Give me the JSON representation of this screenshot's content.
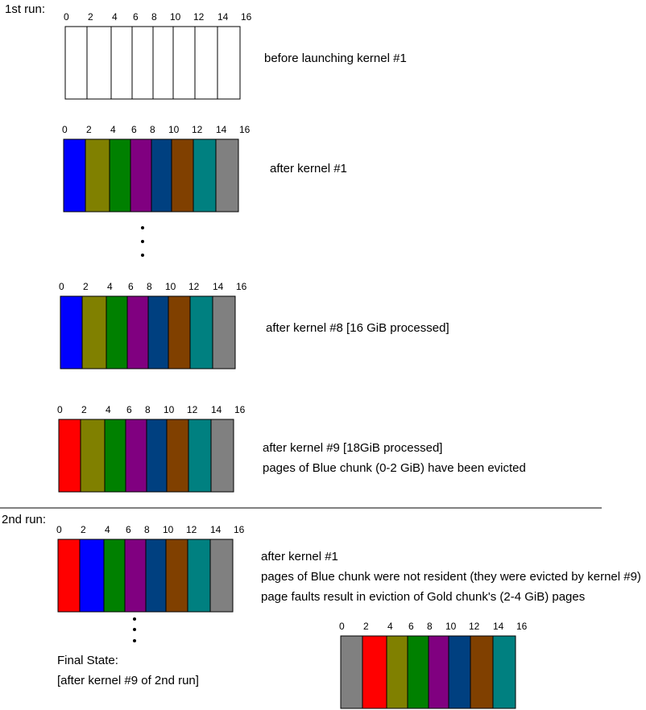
{
  "labels": {
    "run1": "1st run:",
    "run2": "2nd run:",
    "final_state": "Final State:",
    "final_state_sub": "[after kernel #9 of 2nd run]"
  },
  "colors": {
    "blue": "#0000ff",
    "olive": "#808000",
    "green": "#008000",
    "purple": "#800080",
    "navy": "#004080",
    "brown": "#804000",
    "teal": "#008080",
    "gray": "#808080",
    "red": "#ff0000",
    "white": "#ffffff"
  },
  "tick_labels": [
    "0",
    "2",
    "4",
    "6",
    "8",
    "10",
    "12",
    "14",
    "16"
  ],
  "bars": [
    {
      "id": "before-kernel-1",
      "cells": [
        "white",
        "white",
        "white",
        "white",
        "white",
        "white",
        "white",
        "white"
      ],
      "captions": [
        "before launching kernel #1"
      ]
    },
    {
      "id": "after-kernel-1",
      "cells": [
        "blue",
        "olive",
        "green",
        "purple",
        "navy",
        "brown",
        "teal",
        "gray"
      ],
      "captions": [
        "after kernel #1"
      ]
    },
    {
      "id": "after-kernel-8",
      "cells": [
        "blue",
        "olive",
        "green",
        "purple",
        "navy",
        "brown",
        "teal",
        "gray"
      ],
      "captions": [
        "after kernel #8 [16 GiB processed]"
      ]
    },
    {
      "id": "after-kernel-9",
      "cells": [
        "red",
        "olive",
        "green",
        "purple",
        "navy",
        "brown",
        "teal",
        "gray"
      ],
      "captions": [
        "after kernel #9 [18GiB processed]",
        "pages of Blue chunk (0-2 GiB) have been evicted"
      ]
    },
    {
      "id": "run2-after-kernel-1",
      "cells": [
        "red",
        "blue",
        "green",
        "purple",
        "navy",
        "brown",
        "teal",
        "gray"
      ],
      "captions": [
        "after kernel #1",
        "pages of Blue chunk were not resident (they were evicted by kernel #9)",
        "page faults result in eviction of Gold chunk's (2-4 GiB) pages"
      ]
    },
    {
      "id": "final-state",
      "cells": [
        "gray",
        "red",
        "olive",
        "green",
        "purple",
        "navy",
        "brown",
        "teal"
      ],
      "captions": []
    }
  ]
}
